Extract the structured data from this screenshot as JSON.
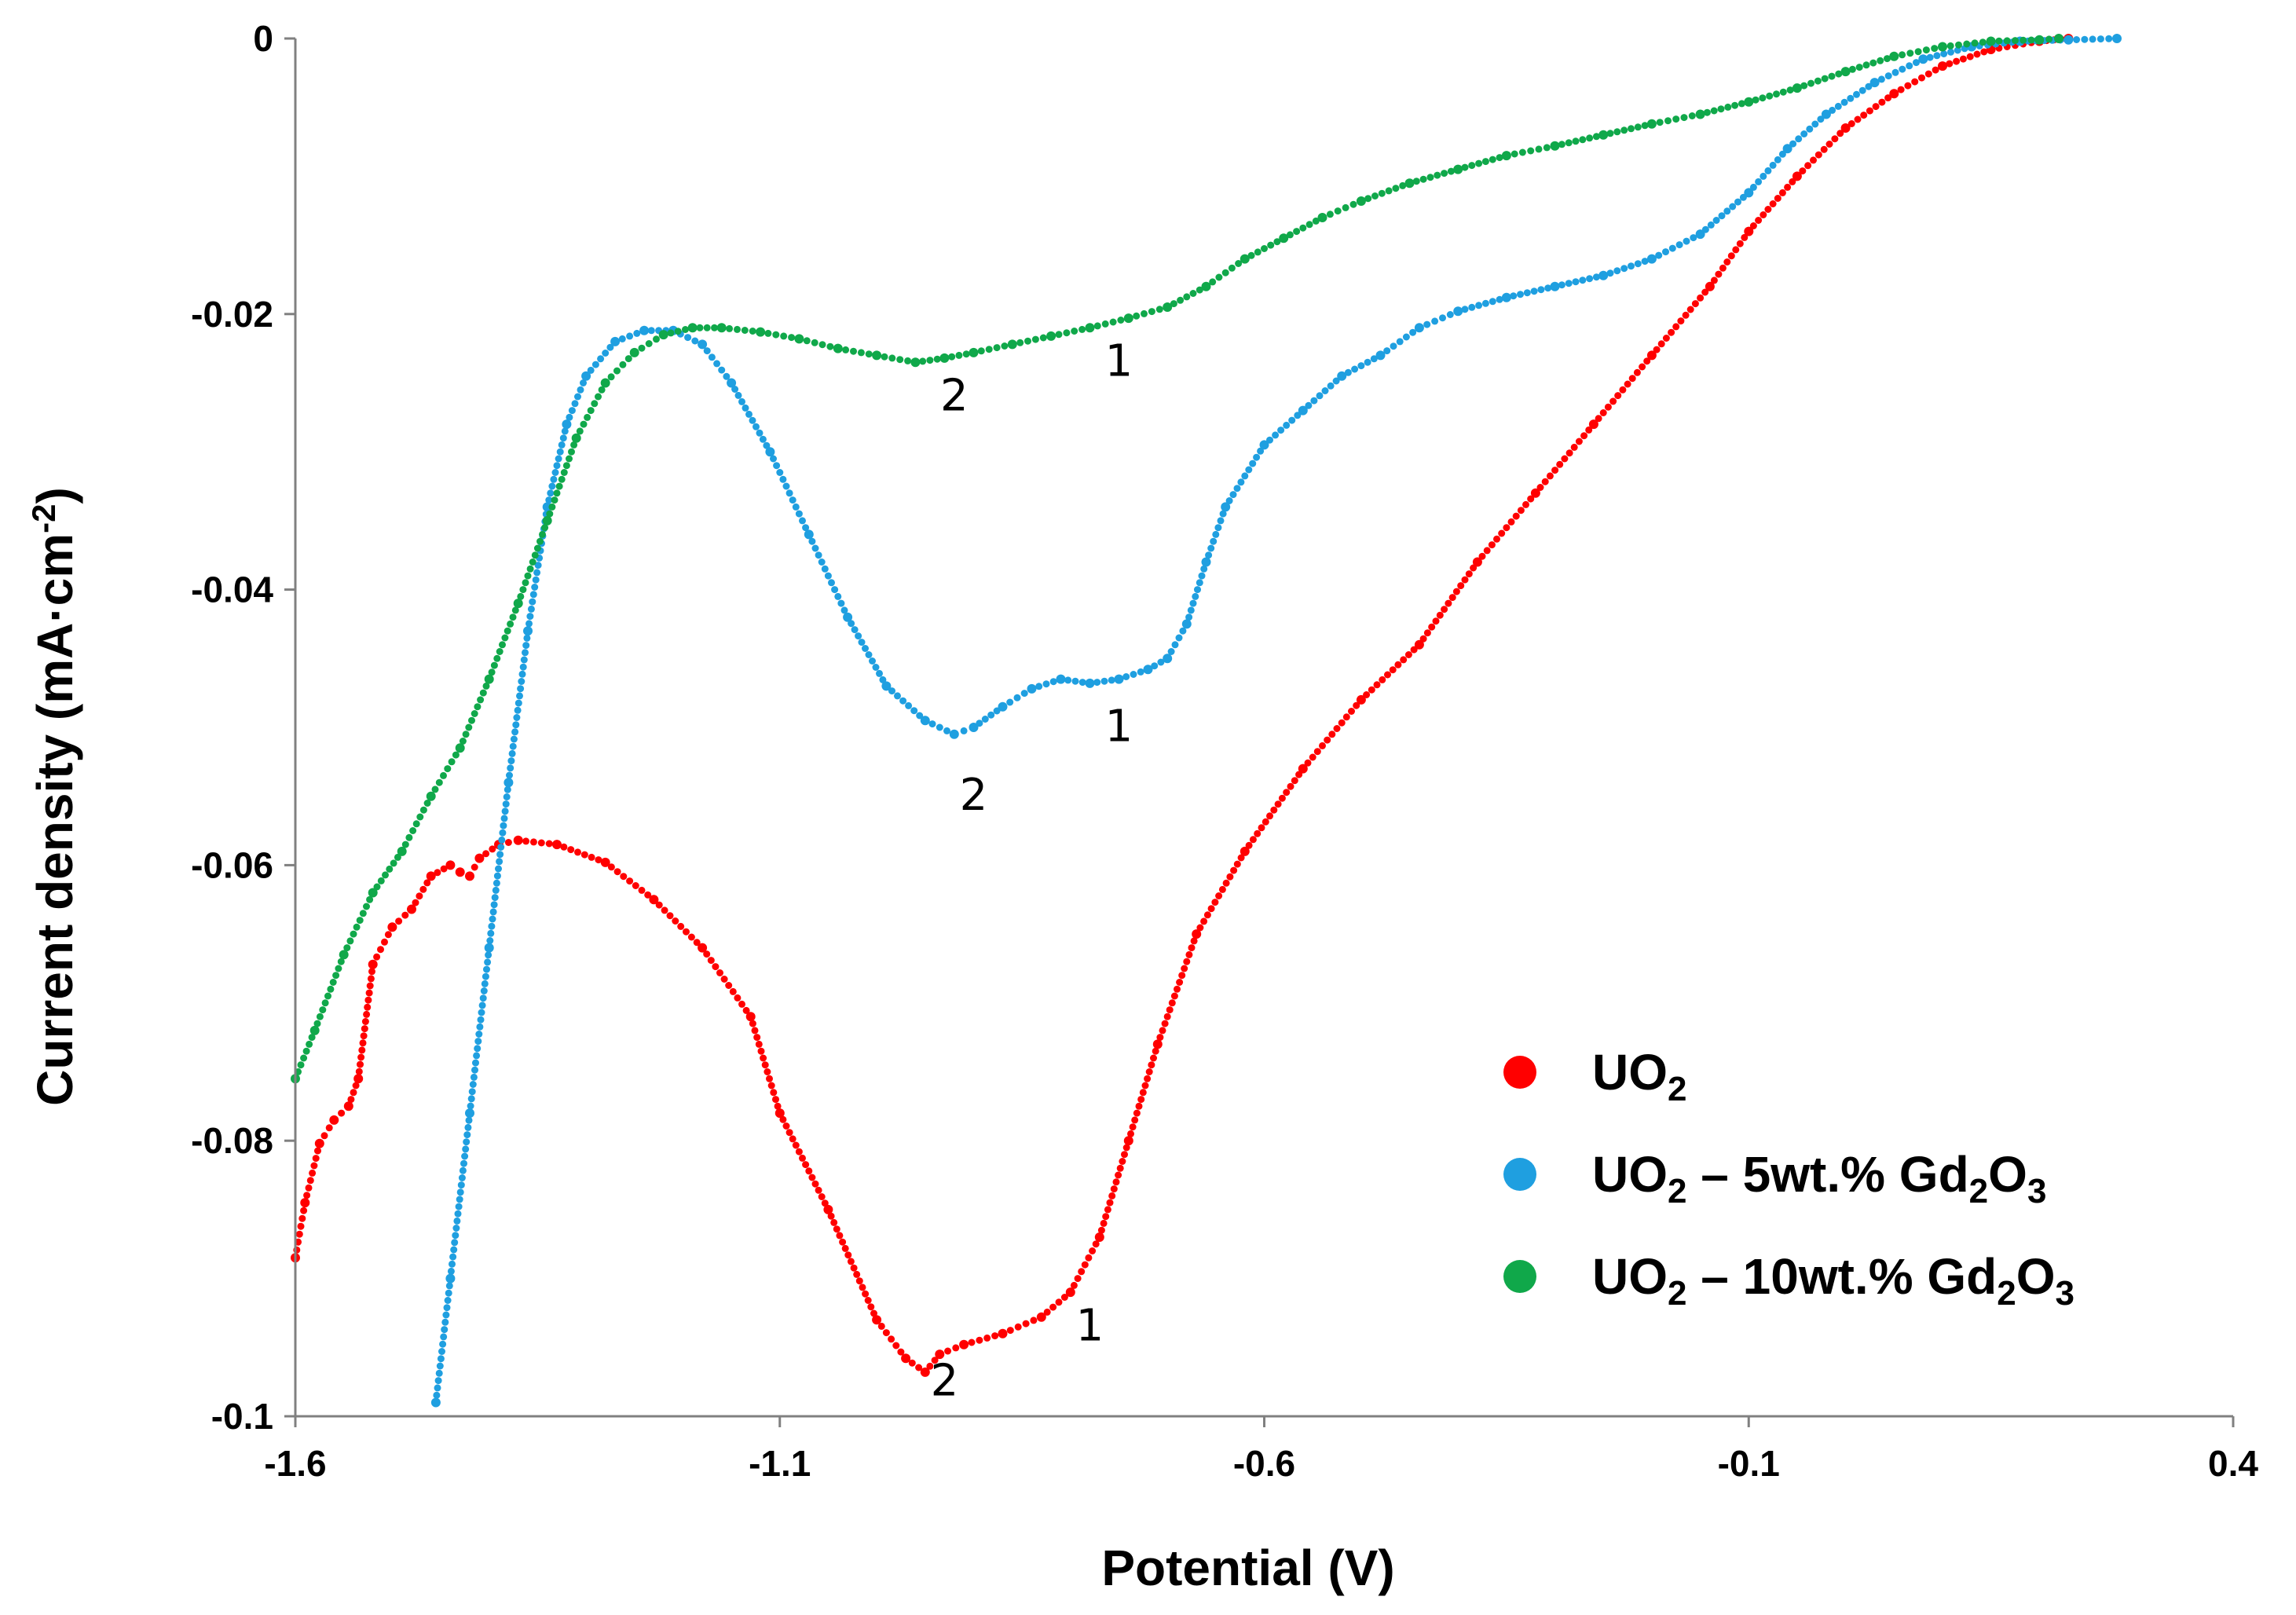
{
  "chart_data": {
    "type": "scatter",
    "title": "",
    "xlabel": "Potential (V)",
    "ylabel": "Current density (mA·cm⁻²)",
    "ylabel_parts": {
      "main": "Current density (mA·cm",
      "sup": "-2",
      "end": ")"
    },
    "xlim": [
      -1.6,
      0.4
    ],
    "ylim": [
      -0.1,
      0
    ],
    "xticks": [
      -1.6,
      -1.1,
      -0.6,
      -0.1,
      0.4
    ],
    "xtick_labels": [
      "-1.6",
      "-1.1",
      "-0.6",
      "-0.1",
      "0.4"
    ],
    "yticks": [
      0,
      -0.02,
      -0.04,
      -0.06,
      -0.08,
      -0.1
    ],
    "ytick_labels": [
      "0",
      "-0.02",
      "-0.04",
      "-0.06",
      "-0.08",
      "-0.1"
    ],
    "grid": false,
    "legend_position": "bottom-right",
    "series": [
      {
        "name": "UO2",
        "label_parts": [
          [
            "UO",
            "n"
          ],
          [
            "2",
            "sub"
          ]
        ],
        "color": "#ff0000",
        "points": [
          [
            -1.6,
            -0.0885
          ],
          [
            -1.59,
            -0.0845
          ],
          [
            -1.575,
            -0.0802
          ],
          [
            -1.56,
            -0.0785
          ],
          [
            -1.545,
            -0.0775
          ],
          [
            -1.535,
            -0.0755
          ],
          [
            -1.52,
            -0.0672
          ],
          [
            -1.5,
            -0.0645
          ],
          [
            -1.48,
            -0.0632
          ],
          [
            -1.46,
            -0.0608
          ],
          [
            -1.44,
            -0.06
          ],
          [
            -1.43,
            -0.0605
          ],
          [
            -1.42,
            -0.0608
          ],
          [
            -1.41,
            -0.0595
          ],
          [
            -1.39,
            -0.0585
          ],
          [
            -1.37,
            -0.0582
          ],
          [
            -1.33,
            -0.0585
          ],
          [
            -1.28,
            -0.0598
          ],
          [
            -1.23,
            -0.0625
          ],
          [
            -1.18,
            -0.066
          ],
          [
            -1.13,
            -0.071
          ],
          [
            -1.1,
            -0.078
          ],
          [
            -1.05,
            -0.085
          ],
          [
            -1.0,
            -0.093
          ],
          [
            -0.97,
            -0.0958
          ],
          [
            -0.95,
            -0.0968
          ],
          [
            -0.935,
            -0.0955
          ],
          [
            -0.91,
            -0.0948
          ],
          [
            -0.87,
            -0.094
          ],
          [
            -0.83,
            -0.0928
          ],
          [
            -0.8,
            -0.091
          ],
          [
            -0.77,
            -0.087
          ],
          [
            -0.74,
            -0.08
          ],
          [
            -0.71,
            -0.073
          ],
          [
            -0.67,
            -0.065
          ],
          [
            -0.62,
            -0.059
          ],
          [
            -0.56,
            -0.053
          ],
          [
            -0.5,
            -0.048
          ],
          [
            -0.44,
            -0.044
          ],
          [
            -0.38,
            -0.038
          ],
          [
            -0.32,
            -0.033
          ],
          [
            -0.26,
            -0.028
          ],
          [
            -0.2,
            -0.023
          ],
          [
            -0.14,
            -0.018
          ],
          [
            -0.1,
            -0.014
          ],
          [
            -0.05,
            -0.01
          ],
          [
            0.0,
            -0.0065
          ],
          [
            0.05,
            -0.004
          ],
          [
            0.1,
            -0.002
          ],
          [
            0.15,
            -0.0008
          ],
          [
            0.2,
            -0.0002
          ],
          [
            0.23,
            0.0
          ]
        ],
        "annotations": [
          {
            "text": "1",
            "x": -0.78,
            "y": -0.0945
          },
          {
            "text": "2",
            "x": -0.93,
            "y": -0.0985
          }
        ]
      },
      {
        "name": "UO2 – 5wt.% Gd2O3",
        "label_parts": [
          [
            "UO",
            "n"
          ],
          [
            "2",
            "sub"
          ],
          [
            " – 5wt.% Gd",
            "n"
          ],
          [
            "2",
            "sub"
          ],
          [
            "O",
            "n"
          ],
          [
            "3",
            "sub"
          ]
        ],
        "color": "#1f9fe0",
        "points": [
          [
            -1.455,
            -0.099
          ],
          [
            -1.44,
            -0.09
          ],
          [
            -1.42,
            -0.078
          ],
          [
            -1.4,
            -0.066
          ],
          [
            -1.38,
            -0.054
          ],
          [
            -1.36,
            -0.043
          ],
          [
            -1.34,
            -0.034
          ],
          [
            -1.32,
            -0.028
          ],
          [
            -1.3,
            -0.0245
          ],
          [
            -1.27,
            -0.022
          ],
          [
            -1.24,
            -0.0212
          ],
          [
            -1.21,
            -0.0212
          ],
          [
            -1.18,
            -0.0222
          ],
          [
            -1.15,
            -0.025
          ],
          [
            -1.11,
            -0.03
          ],
          [
            -1.07,
            -0.036
          ],
          [
            -1.03,
            -0.042
          ],
          [
            -0.99,
            -0.047
          ],
          [
            -0.95,
            -0.0495
          ],
          [
            -0.92,
            -0.0505
          ],
          [
            -0.9,
            -0.05
          ],
          [
            -0.87,
            -0.0485
          ],
          [
            -0.84,
            -0.0472
          ],
          [
            -0.81,
            -0.0465
          ],
          [
            -0.78,
            -0.0468
          ],
          [
            -0.75,
            -0.0465
          ],
          [
            -0.72,
            -0.0458
          ],
          [
            -0.7,
            -0.045
          ],
          [
            -0.68,
            -0.0425
          ],
          [
            -0.66,
            -0.038
          ],
          [
            -0.64,
            -0.034
          ],
          [
            -0.6,
            -0.0295
          ],
          [
            -0.56,
            -0.027
          ],
          [
            -0.52,
            -0.0245
          ],
          [
            -0.48,
            -0.023
          ],
          [
            -0.44,
            -0.021
          ],
          [
            -0.4,
            -0.0198
          ],
          [
            -0.35,
            -0.0188
          ],
          [
            -0.3,
            -0.018
          ],
          [
            -0.25,
            -0.0172
          ],
          [
            -0.2,
            -0.016
          ],
          [
            -0.15,
            -0.0142
          ],
          [
            -0.1,
            -0.0112
          ],
          [
            -0.06,
            -0.008
          ],
          [
            -0.02,
            -0.0055
          ],
          [
            0.03,
            -0.0032
          ],
          [
            0.08,
            -0.0015
          ],
          [
            0.13,
            -0.0006
          ],
          [
            0.18,
            -0.0002
          ],
          [
            0.23,
            -0.0001
          ],
          [
            0.28,
            0.0
          ]
        ],
        "annotations": [
          {
            "text": "1",
            "x": -0.75,
            "y": -0.051
          },
          {
            "text": "2",
            "x": -0.9,
            "y": -0.056
          }
        ]
      },
      {
        "name": "UO2 – 10wt.% Gd2O3",
        "label_parts": [
          [
            "UO",
            "n"
          ],
          [
            "2",
            "sub"
          ],
          [
            " – 10wt.% Gd",
            "n"
          ],
          [
            "2",
            "sub"
          ],
          [
            "O",
            "n"
          ],
          [
            "3",
            "sub"
          ]
        ],
        "color": "#10a84a",
        "points": [
          [
            -1.6,
            -0.0755
          ],
          [
            -1.58,
            -0.072
          ],
          [
            -1.55,
            -0.0665
          ],
          [
            -1.52,
            -0.062
          ],
          [
            -1.49,
            -0.059
          ],
          [
            -1.46,
            -0.055
          ],
          [
            -1.43,
            -0.0515
          ],
          [
            -1.4,
            -0.0465
          ],
          [
            -1.37,
            -0.041
          ],
          [
            -1.34,
            -0.035
          ],
          [
            -1.31,
            -0.029
          ],
          [
            -1.28,
            -0.025
          ],
          [
            -1.25,
            -0.0228
          ],
          [
            -1.22,
            -0.0215
          ],
          [
            -1.19,
            -0.021
          ],
          [
            -1.16,
            -0.021
          ],
          [
            -1.12,
            -0.0213
          ],
          [
            -1.08,
            -0.0218
          ],
          [
            -1.04,
            -0.0225
          ],
          [
            -1.0,
            -0.023
          ],
          [
            -0.96,
            -0.0235
          ],
          [
            -0.93,
            -0.0232
          ],
          [
            -0.9,
            -0.0228
          ],
          [
            -0.86,
            -0.0222
          ],
          [
            -0.82,
            -0.0216
          ],
          [
            -0.78,
            -0.021
          ],
          [
            -0.74,
            -0.0203
          ],
          [
            -0.7,
            -0.0195
          ],
          [
            -0.66,
            -0.018
          ],
          [
            -0.62,
            -0.016
          ],
          [
            -0.58,
            -0.0145
          ],
          [
            -0.54,
            -0.013
          ],
          [
            -0.5,
            -0.0118
          ],
          [
            -0.45,
            -0.0105
          ],
          [
            -0.4,
            -0.0095
          ],
          [
            -0.35,
            -0.0085
          ],
          [
            -0.3,
            -0.0078
          ],
          [
            -0.25,
            -0.007
          ],
          [
            -0.2,
            -0.0062
          ],
          [
            -0.15,
            -0.0055
          ],
          [
            -0.1,
            -0.0046
          ],
          [
            -0.05,
            -0.0036
          ],
          [
            0.0,
            -0.0024
          ],
          [
            0.05,
            -0.0013
          ],
          [
            0.1,
            -0.0006
          ],
          [
            0.15,
            -0.0002
          ],
          [
            0.2,
            -0.0001
          ],
          [
            0.22,
            0.0
          ]
        ],
        "annotations": [
          {
            "text": "1",
            "x": -0.75,
            "y": -0.0245
          },
          {
            "text": "2",
            "x": -0.92,
            "y": -0.027
          }
        ]
      }
    ]
  }
}
